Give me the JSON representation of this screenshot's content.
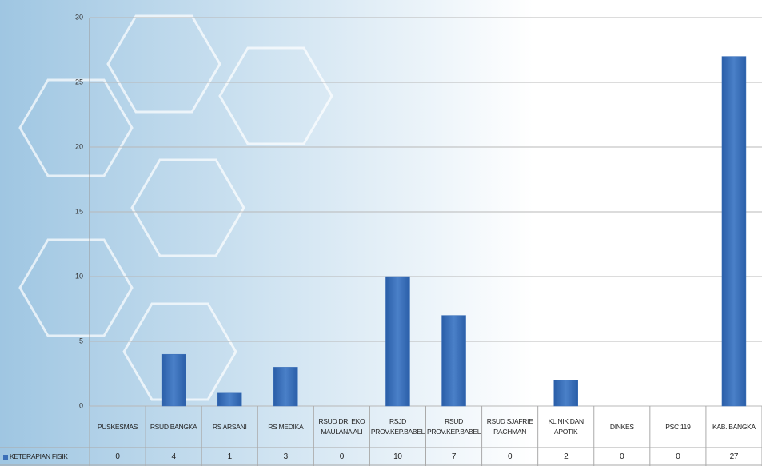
{
  "chart_data": {
    "type": "bar",
    "categories": [
      "PUSKESMAS",
      "RSUD BANGKA",
      "RS ARSANI",
      "RS MEDIKA",
      "RSUD DR. EKO MAULANA ALI",
      "RSJD PROV.KEP.BABEL",
      "RSUD PROV.KEP.BABEL",
      "RSUD SJAFRIE RACHMAN",
      "KLINIK DAN APOTIK",
      "DINKES",
      "PSC 119",
      "KAB. BANGKA"
    ],
    "series": [
      {
        "name": "KETERAPIAN FISIK",
        "color": "#3a6fb8",
        "values": [
          0,
          4,
          1,
          3,
          0,
          10,
          7,
          0,
          2,
          0,
          0,
          27
        ]
      }
    ],
    "ylim": [
      0,
      30
    ],
    "yticks": [
      0,
      5,
      10,
      15,
      20,
      25,
      30
    ],
    "grid": true
  }
}
